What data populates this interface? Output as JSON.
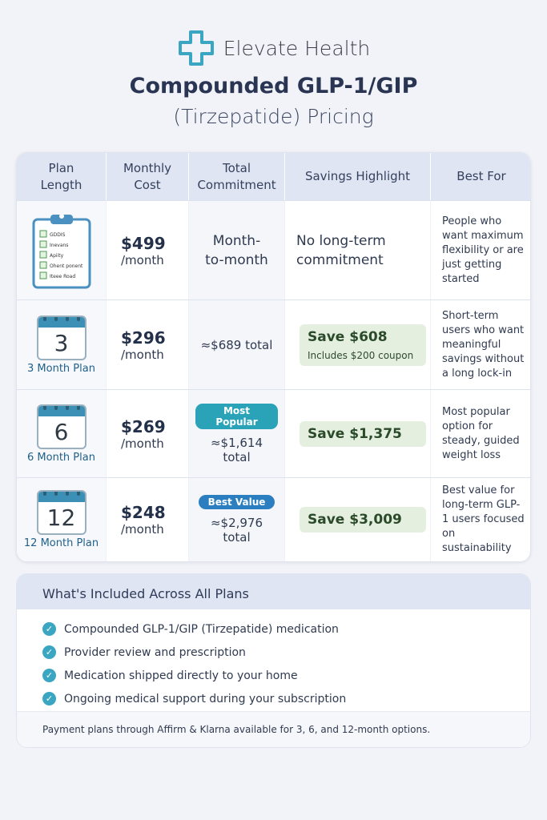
{
  "brand": {
    "name": "Elevate Health",
    "logo_icon": "medical-cross-icon",
    "accent": "#3aa6c2"
  },
  "title": "Compounded GLP-1/GIP",
  "subtitle": "(Tirzepatide) Pricing",
  "table": {
    "headers": [
      "Plan Length",
      "Monthly Cost",
      "Total Commitment",
      "Savings Highlight",
      "Best For"
    ],
    "clipboard_items": [
      "GDDIS",
      "Inevans",
      "Apiity",
      "Ohent ponent",
      "Iteee Road"
    ],
    "rows": [
      {
        "calendar": "",
        "plan": "",
        "price": "$499",
        "per": "/month",
        "total": "Month-to-month",
        "badge": "",
        "savings": "No long-term commitment",
        "savings_note": "",
        "best_for": "People who want maximum flexibility or are just getting started"
      },
      {
        "calendar": "3",
        "plan": "3 Month Plan",
        "price": "$296",
        "per": "/month",
        "total": "≈$689 total",
        "badge": "",
        "savings": "Save $608",
        "savings_note": "Includes $200 coupon",
        "best_for": "Short-term users who want meaningful savings without a long lock-in"
      },
      {
        "calendar": "6",
        "plan": "6 Month Plan",
        "price": "$269",
        "per": "/month",
        "total": "≈$1,614 total",
        "badge": "Most Popular",
        "badge_color": "#2aa3b8",
        "savings": "Save $1,375",
        "savings_note": "",
        "best_for": "Most popular option for steady, guided weight loss"
      },
      {
        "calendar": "12",
        "plan": "12 Month Plan",
        "price": "$248",
        "per": "/month",
        "total": "≈$2,976 total",
        "badge": "Best Value",
        "badge_color": "#2b7fc0",
        "savings": "Save $3,009",
        "savings_note": "",
        "best_for": "Best value for long-term GLP-1 users focused on sustainability"
      }
    ]
  },
  "included": {
    "title": "What's Included Across All Plans",
    "items": [
      "Compounded GLP-1/GIP (Tirzepatide) medication",
      "Provider review and prescription",
      "Medication shipped directly to your home",
      "Ongoing medical support during your subscription"
    ],
    "footer": "Payment plans through Affirm & Klarna available for 3, 6, and 12-month options."
  }
}
